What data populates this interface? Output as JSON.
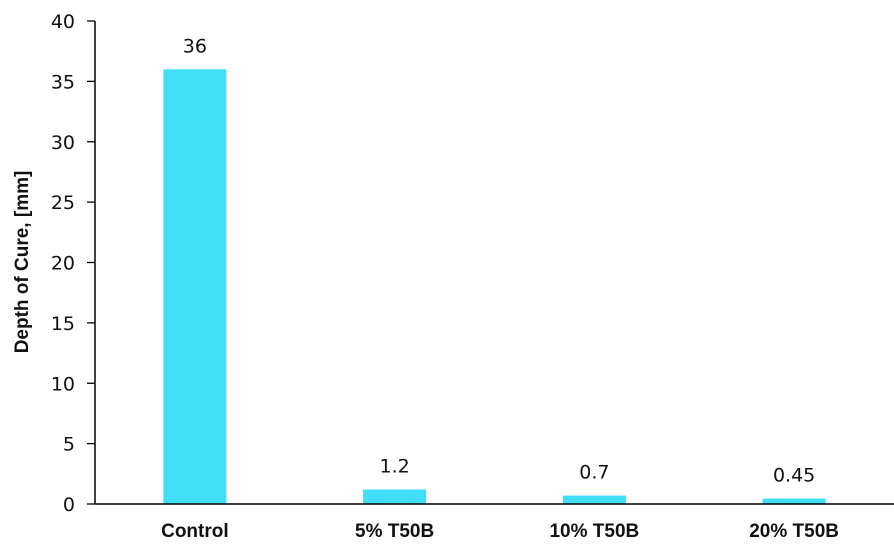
{
  "chart_data": {
    "type": "bar",
    "categories": [
      "Control",
      "5% T50B",
      "10% T50B",
      "20% T50B"
    ],
    "values": [
      36,
      1.2,
      0.7,
      0.45
    ],
    "data_labels": [
      "36",
      "1.2",
      "0.7",
      "0.45"
    ],
    "title": "",
    "xlabel": "",
    "ylabel": "Depth of Cure, [mm]",
    "ylim": [
      0,
      40
    ],
    "yticks": [
      0,
      5,
      10,
      15,
      20,
      25,
      30,
      35,
      40
    ],
    "ytick_labels": [
      "0",
      "5",
      "10",
      "15",
      "20",
      "25",
      "30",
      "35",
      "40"
    ],
    "grid": false,
    "legend": "none",
    "colors": {
      "bar": "#41DFF7",
      "axis": "#000000",
      "text": "#111111"
    }
  }
}
